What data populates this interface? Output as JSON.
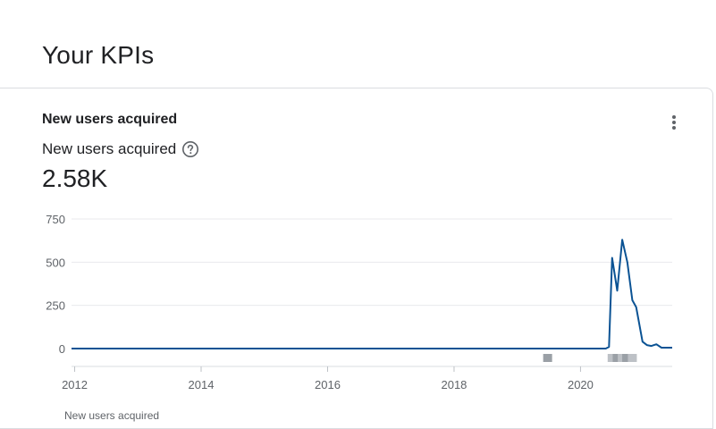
{
  "page": {
    "title": "Your KPIs"
  },
  "card": {
    "title": "New users acquired",
    "metric_label": "New users acquired",
    "metric_value": "2.58K",
    "menu_icon": "more-vert-icon",
    "help_icon": "help-circle-icon",
    "legend_text": "New users acquired"
  },
  "chart_data": {
    "type": "line",
    "title": "",
    "xlabel": "",
    "ylabel": "",
    "ylim": [
      0,
      750
    ],
    "xlim": [
      2011.95,
      2021.45
    ],
    "yticks": [
      {
        "value": 0,
        "label": "0"
      },
      {
        "value": 250,
        "label": "250"
      },
      {
        "value": 500,
        "label": "500"
      },
      {
        "value": 750,
        "label": "750"
      }
    ],
    "xticks": [
      {
        "value": 2012,
        "label": "2012"
      },
      {
        "value": 2014,
        "label": "2014"
      },
      {
        "value": 2016,
        "label": "2016"
      },
      {
        "value": 2018,
        "label": "2018"
      },
      {
        "value": 2020,
        "label": "2020"
      }
    ],
    "grid": true,
    "line_color": "#0b5394",
    "series": [
      {
        "points": [
          [
            2011.95,
            0
          ],
          [
            2020.4,
            0
          ],
          [
            2020.45,
            10
          ],
          [
            2020.5,
            525
          ],
          [
            2020.58,
            335
          ],
          [
            2020.66,
            630
          ],
          [
            2020.74,
            500
          ],
          [
            2020.82,
            280
          ],
          [
            2020.88,
            240
          ],
          [
            2020.98,
            40
          ],
          [
            2021.05,
            20
          ],
          [
            2021.12,
            15
          ],
          [
            2021.2,
            25
          ],
          [
            2021.28,
            5
          ],
          [
            2021.45,
            5
          ]
        ]
      }
    ],
    "annotation_markers": [
      {
        "x": 2019.48,
        "color": "#9aa0a6"
      },
      {
        "x": 2020.5,
        "color": "#bdc1c6"
      },
      {
        "x": 2020.58,
        "color": "#9aa0a6"
      },
      {
        "x": 2020.66,
        "color": "#bdc1c6"
      },
      {
        "x": 2020.73,
        "color": "#9aa0a6"
      },
      {
        "x": 2020.82,
        "color": "#bdc1c6"
      }
    ]
  }
}
